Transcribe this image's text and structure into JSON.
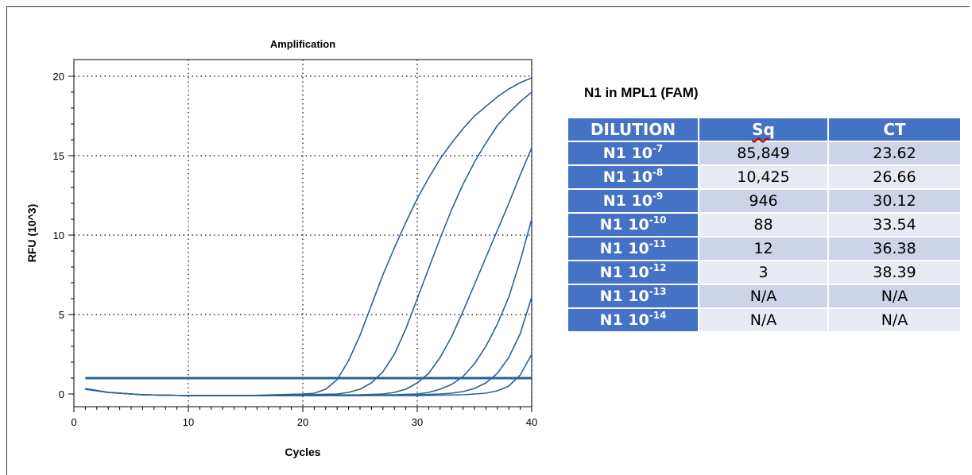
{
  "chart_data": {
    "type": "line",
    "title": "Amplification",
    "xlabel": "Cycles",
    "ylabel": "RFU (10^3)",
    "xlim": [
      0,
      40
    ],
    "ylim": [
      0,
      20
    ],
    "x_ticks": [
      0,
      10,
      20,
      30,
      40
    ],
    "y_ticks": [
      0,
      5,
      10,
      15,
      20
    ],
    "grid": true,
    "line_color": "#2e6096",
    "threshold": 1.0,
    "series": [
      {
        "points": [
          [
            1,
            0.35
          ],
          [
            3,
            0.1
          ],
          [
            6,
            -0.05
          ],
          [
            10,
            -0.1
          ],
          [
            15,
            -0.1
          ],
          [
            20,
            0.0
          ],
          [
            21,
            0.05
          ],
          [
            22,
            0.3
          ],
          [
            23,
            0.9
          ],
          [
            24,
            2.1
          ],
          [
            25,
            3.7
          ],
          [
            26,
            5.6
          ],
          [
            27,
            7.5
          ],
          [
            28,
            9.2
          ],
          [
            29,
            10.8
          ],
          [
            30,
            12.3
          ],
          [
            31,
            13.6
          ],
          [
            32,
            14.8
          ],
          [
            33,
            15.8
          ],
          [
            34,
            16.7
          ],
          [
            35,
            17.5
          ],
          [
            36,
            18.1
          ],
          [
            37,
            18.7
          ],
          [
            38,
            19.2
          ],
          [
            39,
            19.6
          ],
          [
            40,
            19.9
          ]
        ]
      },
      {
        "points": [
          [
            1,
            0.3
          ],
          [
            3,
            0.1
          ],
          [
            6,
            -0.05
          ],
          [
            10,
            -0.1
          ],
          [
            15,
            -0.1
          ],
          [
            20,
            -0.05
          ],
          [
            23,
            0.0
          ],
          [
            24,
            0.1
          ],
          [
            25,
            0.3
          ],
          [
            26,
            0.7
          ],
          [
            27,
            1.4
          ],
          [
            28,
            2.5
          ],
          [
            29,
            4.1
          ],
          [
            30,
            6.0
          ],
          [
            31,
            7.9
          ],
          [
            32,
            9.8
          ],
          [
            33,
            11.6
          ],
          [
            34,
            13.2
          ],
          [
            35,
            14.6
          ],
          [
            36,
            15.8
          ],
          [
            37,
            16.9
          ],
          [
            38,
            17.7
          ],
          [
            39,
            18.4
          ],
          [
            40,
            19.0
          ]
        ]
      },
      {
        "points": [
          [
            1,
            0.3
          ],
          [
            3,
            0.1
          ],
          [
            6,
            -0.05
          ],
          [
            10,
            -0.1
          ],
          [
            15,
            -0.1
          ],
          [
            20,
            -0.08
          ],
          [
            25,
            -0.05
          ],
          [
            27,
            0.0
          ],
          [
            28,
            0.1
          ],
          [
            29,
            0.3
          ],
          [
            30,
            0.7
          ],
          [
            31,
            1.3
          ],
          [
            32,
            2.3
          ],
          [
            33,
            3.6
          ],
          [
            34,
            5.2
          ],
          [
            35,
            6.9
          ],
          [
            36,
            8.6
          ],
          [
            37,
            10.3
          ],
          [
            38,
            12.0
          ],
          [
            39,
            13.8
          ],
          [
            40,
            15.5
          ]
        ]
      },
      {
        "points": [
          [
            1,
            0.3
          ],
          [
            3,
            0.1
          ],
          [
            6,
            -0.05
          ],
          [
            10,
            -0.1
          ],
          [
            15,
            -0.1
          ],
          [
            20,
            -0.1
          ],
          [
            25,
            -0.08
          ],
          [
            28,
            -0.05
          ],
          [
            30,
            0.0
          ],
          [
            31,
            0.1
          ],
          [
            32,
            0.3
          ],
          [
            33,
            0.6
          ],
          [
            34,
            1.1
          ],
          [
            35,
            1.9
          ],
          [
            36,
            3.0
          ],
          [
            37,
            4.4
          ],
          [
            38,
            6.1
          ],
          [
            39,
            8.4
          ],
          [
            40,
            11.0
          ]
        ]
      },
      {
        "points": [
          [
            1,
            0.3
          ],
          [
            3,
            0.1
          ],
          [
            6,
            -0.05
          ],
          [
            10,
            -0.1
          ],
          [
            15,
            -0.1
          ],
          [
            20,
            -0.1
          ],
          [
            25,
            -0.1
          ],
          [
            30,
            -0.05
          ],
          [
            32,
            0.0
          ],
          [
            33,
            0.05
          ],
          [
            34,
            0.15
          ],
          [
            35,
            0.35
          ],
          [
            36,
            0.7
          ],
          [
            37,
            1.3
          ],
          [
            38,
            2.3
          ],
          [
            39,
            3.8
          ],
          [
            40,
            6.1
          ]
        ]
      },
      {
        "points": [
          [
            1,
            0.3
          ],
          [
            3,
            0.1
          ],
          [
            6,
            -0.05
          ],
          [
            10,
            -0.1
          ],
          [
            15,
            -0.1
          ],
          [
            20,
            -0.1
          ],
          [
            25,
            -0.1
          ],
          [
            30,
            -0.1
          ],
          [
            34,
            -0.05
          ],
          [
            35,
            0.0
          ],
          [
            36,
            0.05
          ],
          [
            37,
            0.2
          ],
          [
            38,
            0.5
          ],
          [
            39,
            1.2
          ],
          [
            40,
            2.5
          ]
        ]
      }
    ]
  },
  "table": {
    "title": "N1 in MPL1 (FAM)",
    "headers": [
      "DILUTION",
      "Sq",
      "CT"
    ],
    "rows": [
      {
        "prefix": "N1 10",
        "exp": "-7",
        "sq": "85,849",
        "ct": "23.62"
      },
      {
        "prefix": "N1 10",
        "exp": "-8",
        "sq": "10,425",
        "ct": "26.66"
      },
      {
        "prefix": "N1 10",
        "exp": "-9",
        "sq": "946",
        "ct": "30.12"
      },
      {
        "prefix": "N1 10",
        "exp": "-10",
        "sq": "88",
        "ct": "33.54"
      },
      {
        "prefix": "N1 10",
        "exp": "-11",
        "sq": "12",
        "ct": "36.38"
      },
      {
        "prefix": "N1 10",
        "exp": "-12",
        "sq": "3",
        "ct": "38.39"
      },
      {
        "prefix": "N1 10",
        "exp": "-13",
        "sq": "N/A",
        "ct": "N/A"
      },
      {
        "prefix": "N1 10",
        "exp": "-14",
        "sq": "N/A",
        "ct": "N/A"
      }
    ]
  }
}
